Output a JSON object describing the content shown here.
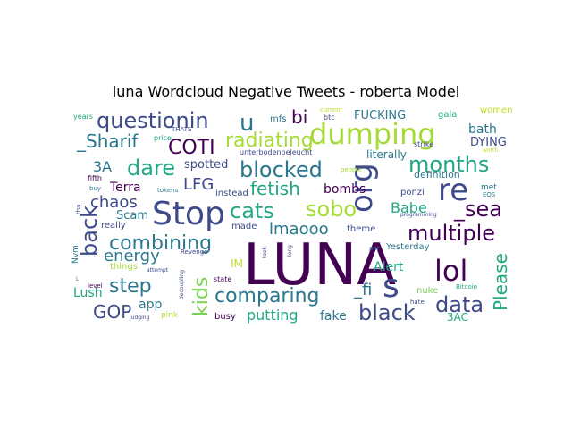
{
  "title": "luna Wordcloud Negative Tweets - roberta Model",
  "words": [
    {
      "text": "LUNA",
      "color": "#440154"
    },
    {
      "text": "Stop",
      "color": "#3e4a89"
    },
    {
      "text": "dumping",
      "color": "#a5db36"
    },
    {
      "text": "questionin",
      "color": "#3e4a89"
    },
    {
      "text": "s",
      "color": "#3e4a89"
    },
    {
      "text": "re",
      "color": "#3e4a89"
    },
    {
      "text": "lol",
      "color": "#440154"
    },
    {
      "text": "org",
      "color": "#3e4a89"
    },
    {
      "text": "u",
      "color": "#2a788e"
    },
    {
      "text": "multiple",
      "color": "#440154"
    },
    {
      "text": "combining",
      "color": "#2a788e"
    },
    {
      "text": "comparing",
      "color": "#2a788e"
    },
    {
      "text": "blocked",
      "color": "#2a788e"
    },
    {
      "text": "months",
      "color": "#22a884"
    },
    {
      "text": "radiating",
      "color": "#a5db36"
    },
    {
      "text": "back",
      "color": "#3e4a89"
    },
    {
      "text": "cats",
      "color": "#22a884"
    },
    {
      "text": "sobo",
      "color": "#a5db36"
    },
    {
      "text": "_sea",
      "color": "#440154"
    },
    {
      "text": "data",
      "color": "#3e4a89"
    },
    {
      "text": "black",
      "color": "#3e4a89"
    },
    {
      "text": "Please",
      "color": "#22a884"
    },
    {
      "text": "step",
      "color": "#2a788e"
    },
    {
      "text": "dare",
      "color": "#22a884"
    },
    {
      "text": "COTI",
      "color": "#440154"
    },
    {
      "text": "_Sharif",
      "color": "#2a788e"
    },
    {
      "text": "kids",
      "color": "#7ad151"
    },
    {
      "text": "fetish",
      "color": "#22a884"
    },
    {
      "text": "lmaooo",
      "color": "#2a788e"
    },
    {
      "text": "energy",
      "color": "#2a788e"
    },
    {
      "text": "GOP",
      "color": "#3e4a89"
    },
    {
      "text": "putting",
      "color": "#22a884"
    },
    {
      "text": "Babe",
      "color": "#22a884"
    },
    {
      "text": "bi",
      "color": "#440154"
    },
    {
      "text": "chaos",
      "color": "#3e4a89"
    },
    {
      "text": "3A",
      "color": "#2a788e"
    },
    {
      "text": "LFG",
      "color": "#3e4a89"
    },
    {
      "text": "_fi",
      "color": "#2a788e"
    },
    {
      "text": "Terra",
      "color": "#440154"
    },
    {
      "text": "Alert",
      "color": "#22a884"
    },
    {
      "text": "Lush",
      "color": "#22a884"
    },
    {
      "text": "app",
      "color": "#2a788e"
    },
    {
      "text": "fake",
      "color": "#2a788e"
    },
    {
      "text": "Scam",
      "color": "#2a788e"
    },
    {
      "text": "bombs",
      "color": "#440154"
    },
    {
      "text": "spotted",
      "color": "#3e4a89"
    },
    {
      "text": "FUCKING",
      "color": "#2a788e"
    },
    {
      "text": "bath",
      "color": "#2a788e"
    },
    {
      "text": "DYING",
      "color": "#3e4a89"
    },
    {
      "text": "literally",
      "color": "#2a788e"
    },
    {
      "text": "definition",
      "color": "#2a788e"
    },
    {
      "text": "3AC",
      "color": "#22a884"
    },
    {
      "text": "IM",
      "color": "#bddf26"
    },
    {
      "text": "busy",
      "color": "#440154"
    },
    {
      "text": "things",
      "color": "#a5db36"
    },
    {
      "text": "Yesterday",
      "color": "#2a788e"
    },
    {
      "text": "theme",
      "color": "#3e4a89"
    },
    {
      "text": "ponzi",
      "color": "#3e4a89"
    },
    {
      "text": "nuke",
      "color": "#7ad151"
    },
    {
      "text": "instead",
      "color": "#3e4a89"
    },
    {
      "text": "made",
      "color": "#3e4a89"
    },
    {
      "text": "really",
      "color": "#3e4a89"
    },
    {
      "text": "pink",
      "color": "#bddf26"
    },
    {
      "text": "mfs",
      "color": "#2a788e"
    },
    {
      "text": "gala",
      "color": "#22a884"
    },
    {
      "text": "women",
      "color": "#bddf26"
    },
    {
      "text": "met",
      "color": "#2a788e"
    },
    {
      "text": "Nvm",
      "color": "#2a788e"
    },
    {
      "text": "state",
      "color": "#440154"
    },
    {
      "text": "strike",
      "color": "#3e4a89"
    },
    {
      "text": "years",
      "color": "#22a884"
    },
    {
      "text": "fifth",
      "color": "#440154"
    },
    {
      "text": "btc",
      "color": "#3e4a89"
    },
    {
      "text": "current",
      "color": "#bddf26"
    },
    {
      "text": "THATS",
      "color": "#3e4a89"
    },
    {
      "text": "price",
      "color": "#22a884"
    },
    {
      "text": "people",
      "color": "#a5db36"
    },
    {
      "text": "unterbodenbeleucht",
      "color": "#3e4a89"
    },
    {
      "text": "tokens",
      "color": "#2a788e"
    },
    {
      "text": "buy",
      "color": "#2a788e"
    },
    {
      "text": "level",
      "color": "#440154"
    },
    {
      "text": "tha",
      "color": "#3e4a89"
    },
    {
      "text": "hate",
      "color": "#3e4a89"
    },
    {
      "text": "per",
      "color": "#2a788e"
    },
    {
      "text": "Bitcoin",
      "color": "#22a884"
    },
    {
      "text": "EOS",
      "color": "#2a788e"
    },
    {
      "text": "programming",
      "color": "#3e4a89"
    },
    {
      "text": "Revenge",
      "color": "#3e4a89"
    },
    {
      "text": "attempt",
      "color": "#3e4a89"
    },
    {
      "text": "decoupling",
      "color": "#3e4a89"
    },
    {
      "text": "judging",
      "color": "#3e4a89"
    },
    {
      "text": "took",
      "color": "#3e4a89"
    },
    {
      "text": "long",
      "color": "#3e4a89"
    },
    {
      "text": "worth",
      "color": "#bddf26"
    },
    {
      "text": "L",
      "color": "#2a788e"
    }
  ]
}
